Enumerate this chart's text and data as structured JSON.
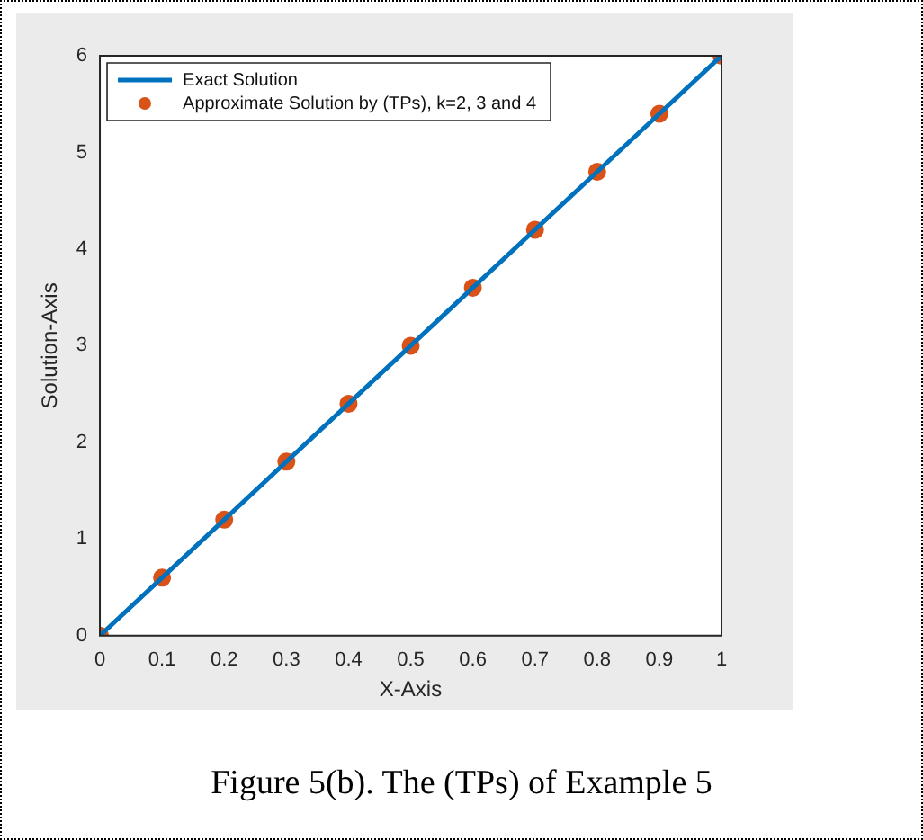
{
  "chart_data": {
    "type": "line",
    "xlabel": "X-Axis",
    "ylabel": "Solution-Axis",
    "annotations": [
      "Figure 5(b). The (TPs) of Example 5"
    ],
    "x": [
      0,
      0.1,
      0.2,
      0.3,
      0.4,
      0.5,
      0.6,
      0.7,
      0.8,
      0.9,
      1
    ],
    "series": [
      {
        "name": "Exact Solution",
        "type": "line",
        "color": "#0072bd",
        "marker": "none",
        "line_style": "solid",
        "values": [
          0,
          0.6,
          1.2,
          1.8,
          2.4,
          3,
          3.6,
          4.2,
          4.8,
          5.4,
          6
        ]
      },
      {
        "name": "Approximate Solution by (TPs), k=2, 3 and 4",
        "type": "scatter",
        "color": "#d95319",
        "marker": "circle",
        "values": [
          0,
          0.6,
          1.2,
          1.8,
          2.4,
          3,
          3.6,
          4.2,
          4.8,
          5.4,
          6
        ]
      }
    ],
    "xlim": [
      0,
      1
    ],
    "xticks": [
      0,
      0.1,
      0.2,
      0.3,
      0.4,
      0.5,
      0.6,
      0.7,
      0.8,
      0.9,
      1
    ],
    "ylim": [
      0,
      6
    ],
    "yticks": [
      0,
      1,
      2,
      3,
      4,
      5,
      6
    ],
    "grid": false,
    "legend": "top left"
  }
}
